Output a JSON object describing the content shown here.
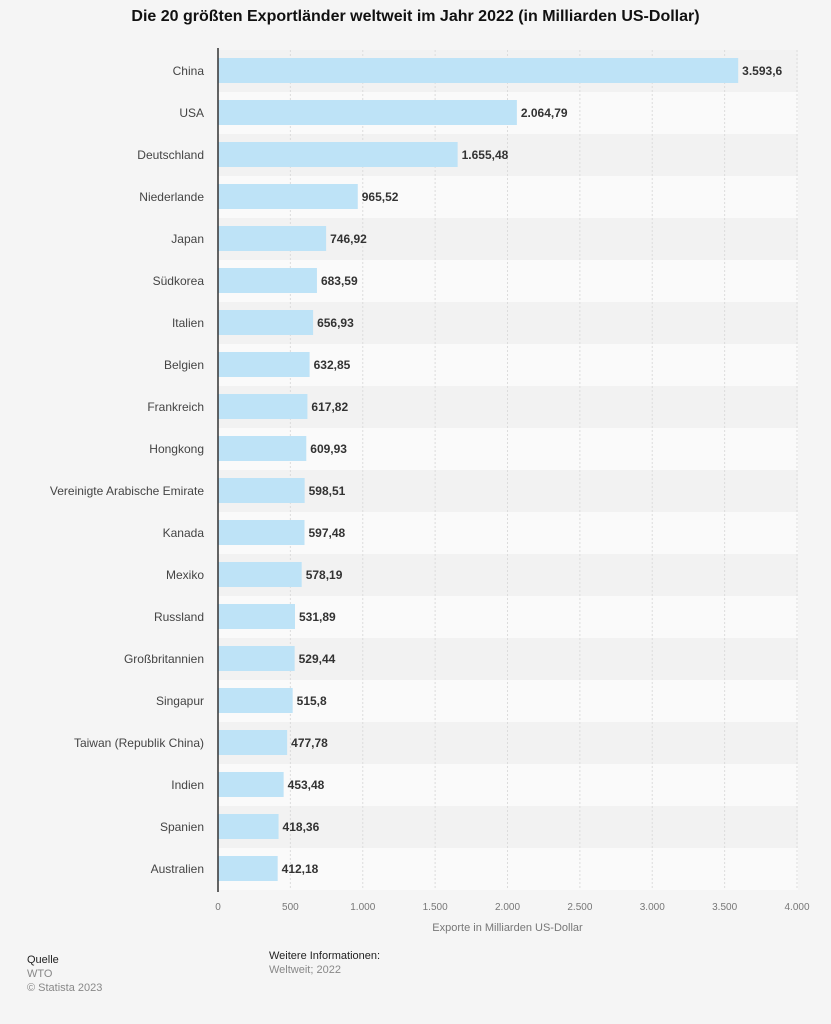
{
  "chart_data": {
    "type": "bar",
    "orientation": "horizontal",
    "title": "Die 20 größten Exportländer weltweit im Jahr 2022 (in Milliarden US-Dollar)",
    "xlabel": "Exporte in Milliarden US-Dollar",
    "ylabel": "",
    "xlim": [
      0,
      4000
    ],
    "ticks": [
      0,
      500,
      1000,
      1500,
      2000,
      2500,
      3000,
      3500,
      4000
    ],
    "tick_labels": [
      "0",
      "500",
      "1.000",
      "1.500",
      "2.000",
      "2.500",
      "3.000",
      "3.500",
      "4.000"
    ],
    "grid": true,
    "categories": [
      "China",
      "USA",
      "Deutschland",
      "Niederlande",
      "Japan",
      "Südkorea",
      "Italien",
      "Belgien",
      "Frankreich",
      "Hongkong",
      "Vereinigte Arabische Emirate",
      "Kanada",
      "Mexiko",
      "Russland",
      "Großbritannien",
      "Singapur",
      "Taiwan (Republik China)",
      "Indien",
      "Spanien",
      "Australien"
    ],
    "values": [
      3593.6,
      2064.79,
      1655.48,
      965.52,
      746.92,
      683.59,
      656.93,
      632.85,
      617.82,
      609.93,
      598.51,
      597.48,
      578.19,
      531.89,
      529.44,
      515.8,
      477.78,
      453.48,
      418.36,
      412.18
    ],
    "value_labels": [
      "3.593,6",
      "2.064,79",
      "1.655,48",
      "965,52",
      "746,92",
      "683,59",
      "656,93",
      "632,85",
      "617,82",
      "609,93",
      "598,51",
      "597,48",
      "578,19",
      "531,89",
      "529,44",
      "515,8",
      "477,78",
      "453,48",
      "418,36",
      "412,18"
    ],
    "bar_color": "#bee3f7"
  },
  "footer": {
    "source_heading": "Quelle",
    "source": "WTO",
    "copyright": "© Statista 2023",
    "info_heading": "Weitere Informationen:",
    "info": "Weltweit; 2022"
  }
}
